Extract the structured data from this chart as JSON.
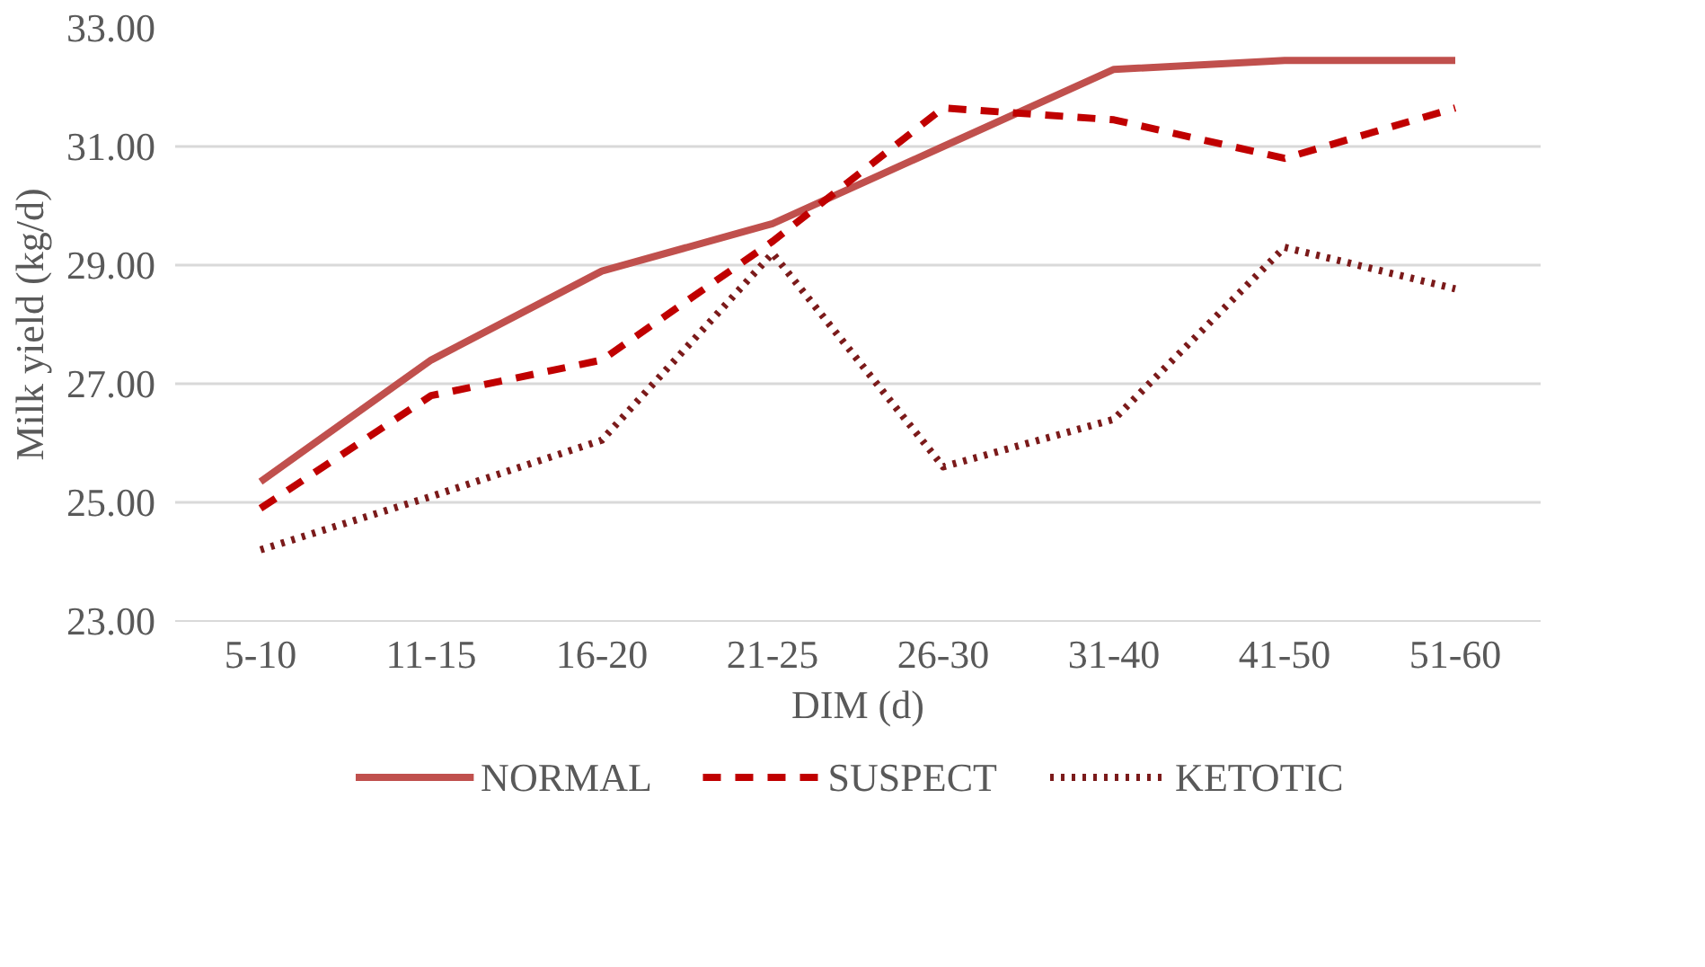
{
  "chart_data": {
    "type": "line",
    "xlabel": "DIM (d)",
    "ylabel": "Milk yield (kg/d)",
    "categories": [
      "5-10",
      "11-15",
      "16-20",
      "21-25",
      "26-30",
      "31-40",
      "41-50",
      "51-60"
    ],
    "ylim": [
      23,
      33
    ],
    "yticks": [
      {
        "value": 23,
        "label": "23.00"
      },
      {
        "value": 25,
        "label": "25.00"
      },
      {
        "value": 27,
        "label": "27.00"
      },
      {
        "value": 29,
        "label": "29.00"
      },
      {
        "value": 31,
        "label": "31.00"
      },
      {
        "value": 33,
        "label": "33.00"
      }
    ],
    "grid": "y",
    "legend": "bottom",
    "marker": "none",
    "series": [
      {
        "name": "NORMAL",
        "color": "#c0504d",
        "line_style": "solid",
        "values": [
          25.35,
          27.4,
          28.9,
          29.7,
          31.0,
          32.3,
          32.45,
          32.45
        ]
      },
      {
        "name": "SUSPECT",
        "color": "#c00000",
        "line_style": "dashed",
        "values": [
          24.9,
          26.8,
          27.4,
          29.4,
          31.65,
          31.45,
          30.8,
          31.65
        ]
      },
      {
        "name": "KETOTIC",
        "color": "#7b1a1a",
        "line_style": "dotted",
        "values": [
          24.2,
          25.1,
          26.05,
          29.2,
          25.6,
          26.4,
          29.3,
          28.6
        ]
      }
    ]
  }
}
